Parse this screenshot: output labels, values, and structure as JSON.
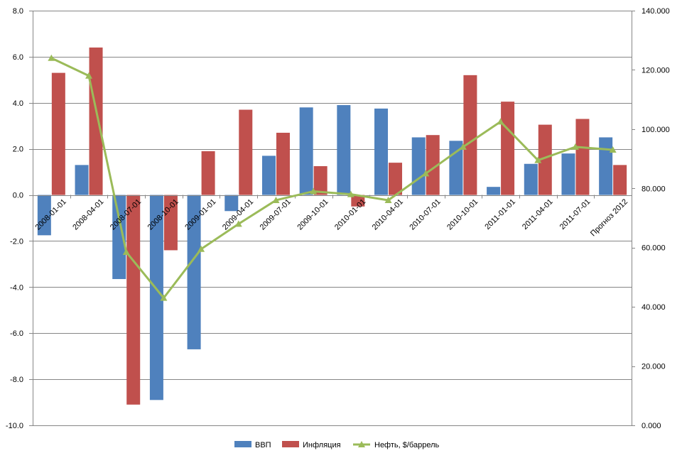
{
  "chart_data": {
    "type": "bar",
    "categories": [
      "2008-01-01",
      "2008-04-01",
      "2008-07-01",
      "2008-10-01",
      "2009-01-01",
      "2009-04-01",
      "2009-07-01",
      "2009-10-01",
      "2010-01-01",
      "2010-04-01",
      "2010-07-01",
      "2010-10-01",
      "2011-01-01",
      "2011-04-01",
      "2011-07-01",
      "Прогноз 2012"
    ],
    "series": [
      {
        "name": "ВВП",
        "type": "bar",
        "axis": "left",
        "color": "#4F81BD",
        "values": [
          -1.75,
          1.3,
          -3.65,
          -8.9,
          -6.7,
          -0.7,
          1.7,
          3.8,
          3.9,
          3.75,
          2.5,
          2.35,
          0.35,
          1.35,
          1.8,
          2.5
        ]
      },
      {
        "name": "Инфляция",
        "type": "bar",
        "axis": "left",
        "color": "#C0504D",
        "values": [
          5.3,
          6.4,
          -9.1,
          -2.4,
          1.9,
          3.7,
          2.7,
          1.25,
          -0.5,
          1.4,
          2.6,
          5.2,
          4.05,
          3.05,
          3.3,
          1.3
        ]
      },
      {
        "name": "Нефть, $/баррель",
        "type": "line",
        "axis": "right",
        "color": "#9BBB59",
        "values": [
          124,
          118,
          58.5,
          43,
          59.5,
          68,
          76,
          79,
          78,
          76,
          85,
          94,
          102.5,
          89.5,
          94,
          93
        ]
      }
    ],
    "left_axis": {
      "min": -10,
      "max": 8,
      "step": 2,
      "ticks": [
        "8.0",
        "6.0",
        "4.0",
        "2.0",
        "0.0",
        "-2.0",
        "-4.0",
        "-6.0",
        "-8.0",
        "-10.0"
      ]
    },
    "right_axis": {
      "min": 0,
      "max": 140,
      "step": 20,
      "ticks": [
        "140.000",
        "120.000",
        "100.000",
        "80.000",
        "60.000",
        "40.000",
        "20.000",
        "0.000"
      ]
    },
    "legend": {
      "position": "bottom",
      "items": [
        "ВВП",
        "Инфляция",
        "Нефть, $/баррель"
      ]
    },
    "grid": true
  }
}
